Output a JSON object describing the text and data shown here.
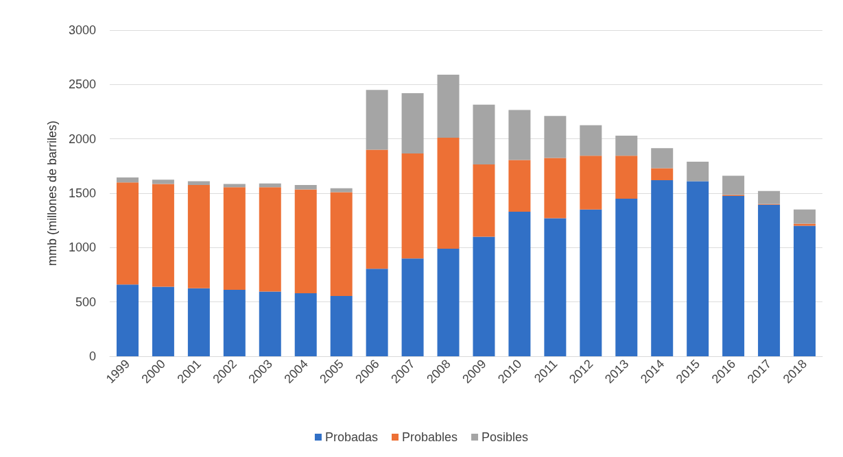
{
  "chart_data": {
    "type": "bar",
    "stacked": true,
    "ylabel": "mmb (millones de barriles)",
    "categories": [
      "1999",
      "2000",
      "2001",
      "2002",
      "2003",
      "2004",
      "2005",
      "2006",
      "2007",
      "2008",
      "2009",
      "2010",
      "2011",
      "2012",
      "2013",
      "2014",
      "2015",
      "2016",
      "2017",
      "2018"
    ],
    "series": [
      {
        "name": "Probadas",
        "color": "#3170c6",
        "values": [
          660,
          640,
          625,
          612,
          595,
          580,
          555,
          805,
          900,
          990,
          1100,
          1330,
          1270,
          1350,
          1450,
          1620,
          1610,
          1475,
          1395,
          1200
        ]
      },
      {
        "name": "Probables",
        "color": "#ed7035",
        "values": [
          940,
          945,
          950,
          943,
          960,
          955,
          955,
          1095,
          965,
          1020,
          665,
          475,
          555,
          495,
          395,
          110,
          0,
          10,
          5,
          20
        ]
      },
      {
        "name": "Posibles",
        "color": "#a5a5a5",
        "values": [
          45,
          40,
          35,
          30,
          35,
          40,
          35,
          550,
          555,
          580,
          550,
          460,
          385,
          280,
          185,
          185,
          180,
          175,
          120,
          130
        ]
      }
    ],
    "ylim": [
      0,
      3000
    ],
    "yticks": [
      0,
      500,
      1000,
      1500,
      2000,
      2500,
      3000
    ],
    "grid": "y",
    "legend": "bottom"
  }
}
